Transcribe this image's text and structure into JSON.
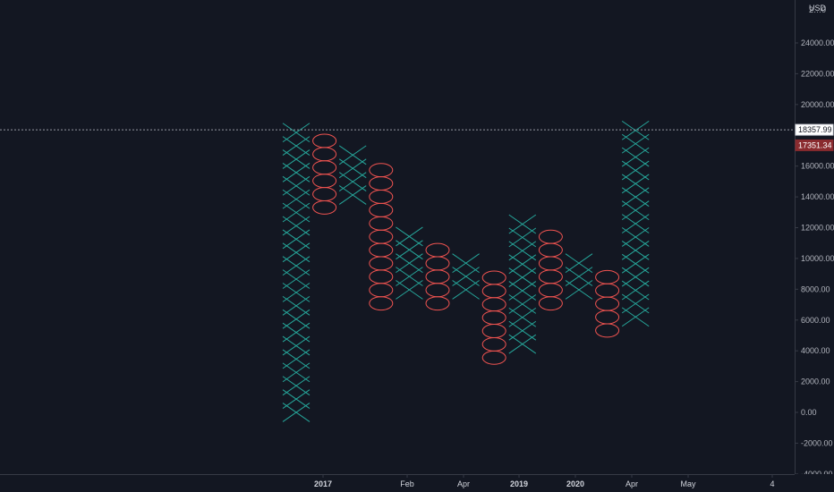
{
  "chart_data": {
    "type": "point-and-figure",
    "currency": "USD",
    "box_size": 865.57,
    "y_ticks": [
      "24000.00",
      "22000.00",
      "20000.00",
      "16000.00",
      "14000.00",
      "12000.00",
      "10000.00",
      "8000.00",
      "6000.00",
      "4000.00",
      "2000.00",
      "0.00",
      "-2000.00",
      "-4000.00"
    ],
    "y_tick_values": [
      24000,
      22000,
      20000,
      16000,
      14000,
      12000,
      10000,
      8000,
      6000,
      4000,
      2000,
      0,
      -2000,
      -4000
    ],
    "x_ticks": [
      {
        "label": "2017",
        "bold": true
      },
      {
        "label": "Feb",
        "bold": false
      },
      {
        "label": "Apr",
        "bold": false
      },
      {
        "label": "2019",
        "bold": true
      },
      {
        "label": "2020",
        "bold": true
      },
      {
        "label": "Apr",
        "bold": false
      },
      {
        "label": "May",
        "bold": false
      },
      {
        "label": "4",
        "bold": false
      }
    ],
    "top_tick_partial": "2…0",
    "crosshair": {
      "value": 18357.99,
      "label": "18357.99"
    },
    "last_price": {
      "value": 17351.34,
      "label": "17351.34"
    },
    "columns": [
      {
        "kind": "X",
        "low": 0.0,
        "high": 18335.4
      },
      {
        "kind": "O",
        "high": 17494.2,
        "low": 13311.4
      },
      {
        "kind": "X",
        "low": 14120.0,
        "high": 16613.5
      },
      {
        "kind": "O",
        "high": 15731.2,
        "low": 7081.6
      },
      {
        "kind": "X",
        "low": 7963.9,
        "high": 11488.5
      },
      {
        "kind": "O",
        "high": 10606.2,
        "low": 7081.6
      },
      {
        "kind": "X",
        "low": 7963.9,
        "high": 9723.9
      },
      {
        "kind": "O",
        "high": 8846.7,
        "low": 3557.0
      },
      {
        "kind": "X",
        "low": 4439.3,
        "high": 12371.8
      },
      {
        "kind": "O",
        "high": 11488.5,
        "low": 7081.6
      },
      {
        "kind": "X",
        "low": 7963.9,
        "high": 9723.9
      },
      {
        "kind": "O",
        "high": 8846.7,
        "low": 5321.6
      },
      {
        "kind": "X",
        "low": 6198.9,
        "high": 18335.4
      }
    ],
    "x_color": "#26a69a",
    "o_color": "#ef5350",
    "grid": false
  }
}
